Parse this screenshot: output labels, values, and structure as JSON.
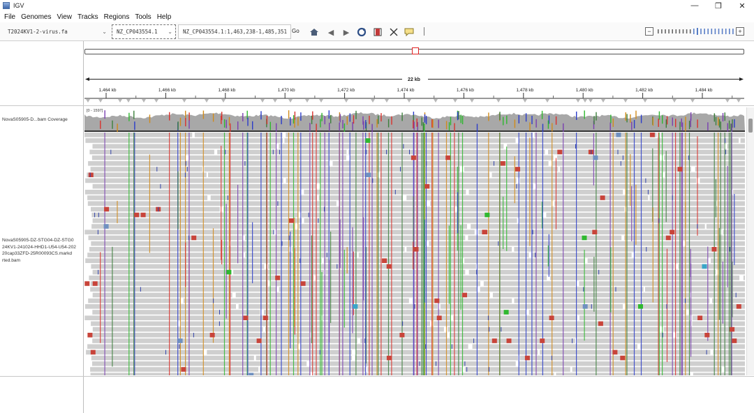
{
  "window": {
    "title": "IGV"
  },
  "menu": [
    "File",
    "Genomes",
    "View",
    "Tracks",
    "Regions",
    "Tools",
    "Help"
  ],
  "toolbar": {
    "genome": "T2024KV1-2-virus.fa",
    "chromosome": "NZ_CP043554.1",
    "locus": "NZ_CP043554.1:1,463,238-1,485,351",
    "go_label": "Go"
  },
  "ruler": {
    "span_label": "22 kb",
    "ticks": [
      "1,464 kb",
      "1,466 kb",
      "1,468 kb",
      "1,470 kb",
      "1,472 kb",
      "1,474 kb",
      "1,476 kb",
      "1,478 kb",
      "1,480 kb",
      "1,482 kb",
      "1,484 kb"
    ]
  },
  "tracks": {
    "coverage_name": "NovaS05905-D...bam Coverage",
    "coverage_range": "[0 - 1597]",
    "alignment_name": "NovaS05905-DZ-STG04-DZ-STG0\n24KV1-241024-HHD1-U54-U54-202\n20cap33ZFD-25R00093CS.markd\nrted.bam"
  },
  "colors": {
    "coverage": "#a8a8a8",
    "read": "#cfcfcf",
    "mismatch_A": "#2fb82f",
    "mismatch_C": "#2b3cc9",
    "mismatch_G": "#d18b1b",
    "mismatch_T": "#d9322d",
    "marker": "#e02020"
  }
}
